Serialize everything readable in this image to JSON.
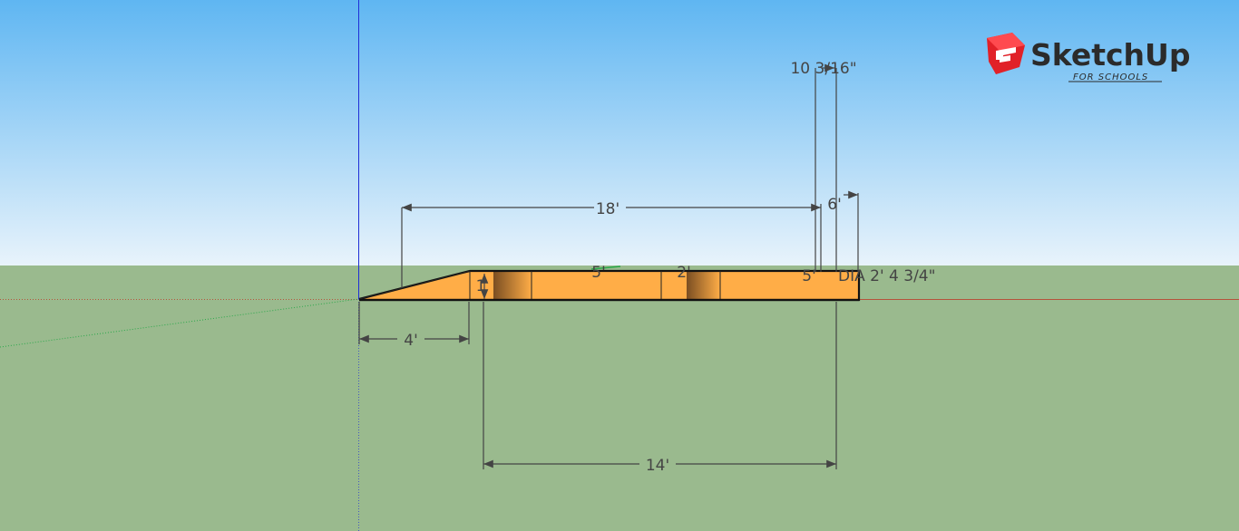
{
  "viewport": {
    "sky_top_color": "#5fb6f2",
    "sky_bottom_color": "#e8f3fb",
    "ground_color": "#9aba8e",
    "model_face_color": "#ffad47",
    "model_shade_color": "#7a4e22"
  },
  "brand": {
    "name": "SketchUp",
    "subtitle": "FOR SCHOOLS",
    "logo_color": "#e12128"
  },
  "axes": {
    "blue": "#1f2fd6",
    "red": "#b5543c",
    "green": "#2aa84a"
  },
  "dimensions": {
    "top_offset": "10 3/16\"",
    "overall_length": "18'",
    "end_offset": "6'",
    "ramp_run": "4'",
    "bottom_length": "14'",
    "ramp_height": "1",
    "segment_a": "5'",
    "segment_b": "2'",
    "segment_c": "5'",
    "diameter": "DIA 2' 4 3/4\""
  }
}
